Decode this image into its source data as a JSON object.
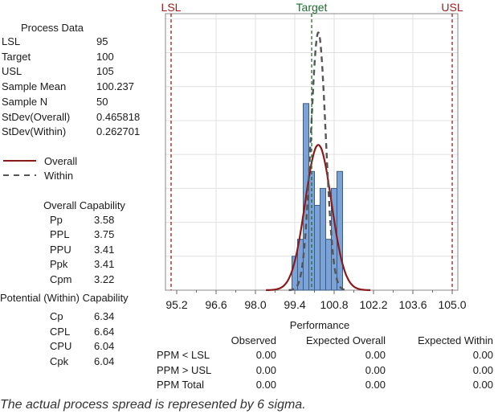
{
  "process_data": {
    "title": "Process Data",
    "rows": [
      {
        "label": "LSL",
        "value": "95"
      },
      {
        "label": "Target",
        "value": "100"
      },
      {
        "label": "USL",
        "value": "105"
      },
      {
        "label": "Sample Mean",
        "value": "100.237"
      },
      {
        "label": "Sample N",
        "value": "50"
      },
      {
        "label": "StDev(Overall)",
        "value": "0.465818"
      },
      {
        "label": "StDev(Within)",
        "value": "0.262701"
      }
    ]
  },
  "legend": {
    "overall": "Overall",
    "within": "Within"
  },
  "overall_capability": {
    "title": "Overall Capability",
    "rows": [
      {
        "label": "Pp",
        "value": "3.58"
      },
      {
        "label": "PPL",
        "value": "3.75"
      },
      {
        "label": "PPU",
        "value": "3.41"
      },
      {
        "label": "Ppk",
        "value": "3.41"
      },
      {
        "label": "Cpm",
        "value": "3.22"
      }
    ]
  },
  "potential_capability": {
    "title": "Potential (Within) Capability",
    "rows": [
      {
        "label": "Cp",
        "value": "6.34"
      },
      {
        "label": "CPL",
        "value": "6.64"
      },
      {
        "label": "CPU",
        "value": "6.04"
      },
      {
        "label": "Cpk",
        "value": "6.04"
      }
    ]
  },
  "performance": {
    "title": "Performance",
    "headers": [
      "Observed",
      "Expected Overall",
      "Expected Within"
    ],
    "rows": [
      {
        "label": "PPM < LSL",
        "values": [
          "0.00",
          "0.00",
          "0.00"
        ]
      },
      {
        "label": "PPM > USL",
        "values": [
          "0.00",
          "0.00",
          "0.00"
        ]
      },
      {
        "label": "PPM Total",
        "values": [
          "0.00",
          "0.00",
          "0.00"
        ]
      }
    ]
  },
  "footnote": "The actual process spread is represented by 6 sigma.",
  "chart_data": {
    "type": "bar",
    "title": "",
    "xlabel": "",
    "ylabel": "",
    "xlim": [
      94.8,
      105.2
    ],
    "ylim": [
      0,
      16.3
    ],
    "x_ticks": [
      "95.2",
      "96.6",
      "98.0",
      "99.4",
      "100.8",
      "102.2",
      "103.6",
      "105.0"
    ],
    "bin_start": 99.3,
    "bin_width": 0.2,
    "counts": [
      2,
      3,
      11,
      7,
      5,
      6,
      3,
      6,
      7
    ],
    "spec_lines": [
      {
        "name": "LSL",
        "value": 95,
        "color": "#9e1b1b"
      },
      {
        "name": "Target",
        "value": 100,
        "color": "#1e6b2e"
      },
      {
        "name": "USL",
        "value": 105,
        "color": "#9e1b1b"
      }
    ],
    "curves": [
      {
        "name": "Overall",
        "mean": 100.237,
        "sd": 0.465818,
        "color": "#8b1a1a",
        "style": "solid"
      },
      {
        "name": "Within",
        "mean": 100.237,
        "sd": 0.262701,
        "color": "#555555",
        "style": "dashed"
      }
    ],
    "n": 50,
    "colors": {
      "bar": "#7ba3d8",
      "bar_edge": "#3d5a80",
      "grid": "#e0e0e0"
    }
  }
}
